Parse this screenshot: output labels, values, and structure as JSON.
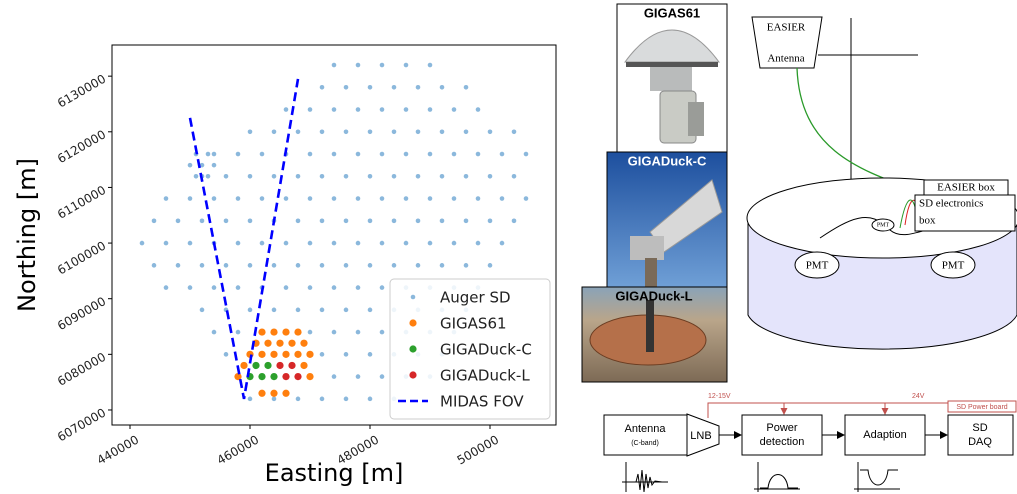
{
  "chart_data": {
    "type": "scatter",
    "x_label": "Easting [m]",
    "y_label": "Northing [m]",
    "xlim": [
      437000,
      511000
    ],
    "ylim": [
      6067300,
      6135600
    ],
    "xticks": [
      440000,
      460000,
      480000,
      500000
    ],
    "yticks": [
      6070000,
      6080000,
      6090000,
      6100000,
      6110000,
      6120000,
      6130000
    ],
    "legend": "lower right",
    "series": [
      {
        "name": "Auger SD",
        "color": "#8bb8dc",
        "x": [
          460000,
          464000,
          468000,
          472000,
          476000,
          480000,
          484000,
          458000,
          462000,
          466000,
          470000,
          474000,
          478000,
          482000,
          486000,
          490000,
          456000,
          460000,
          464000,
          468000,
          472000,
          476000,
          480000,
          484000,
          488000,
          492000,
          454000,
          458000,
          462000,
          466000,
          470000,
          474000,
          478000,
          482000,
          486000,
          490000,
          494000,
          452000,
          456000,
          460000,
          464000,
          468000,
          472000,
          476000,
          480000,
          484000,
          488000,
          492000,
          496000,
          446000,
          450000,
          454000,
          458000,
          462000,
          466000,
          470000,
          474000,
          478000,
          482000,
          486000,
          490000,
          494000,
          498000,
          444000,
          448000,
          452000,
          456000,
          460000,
          464000,
          468000,
          472000,
          476000,
          480000,
          484000,
          488000,
          492000,
          496000,
          500000,
          442000,
          446000,
          450000,
          454000,
          458000,
          462000,
          466000,
          470000,
          474000,
          478000,
          482000,
          486000,
          490000,
          494000,
          498000,
          502000,
          444000,
          448000,
          452000,
          456000,
          460000,
          464000,
          468000,
          472000,
          476000,
          480000,
          484000,
          488000,
          492000,
          496000,
          500000,
          504000,
          446000,
          450000,
          454000,
          458000,
          462000,
          466000,
          470000,
          474000,
          478000,
          482000,
          486000,
          490000,
          494000,
          498000,
          502000,
          506000,
          452000,
          456000,
          460000,
          464000,
          468000,
          472000,
          476000,
          480000,
          484000,
          488000,
          492000,
          496000,
          500000,
          504000,
          454000,
          458000,
          462000,
          466000,
          470000,
          474000,
          478000,
          482000,
          486000,
          490000,
          494000,
          498000,
          502000,
          506000,
          460000,
          464000,
          468000,
          472000,
          476000,
          480000,
          484000,
          488000,
          492000,
          496000,
          500000,
          504000,
          466000,
          470000,
          474000,
          478000,
          482000,
          486000,
          490000,
          494000,
          498000,
          472000,
          476000,
          480000,
          484000,
          488000,
          492000,
          496000,
          474000,
          478000,
          482000,
          486000,
          490000,
          450000,
          452000,
          454000,
          451000,
          453000,
          451000,
          453000
        ],
        "values": [
          6072000,
          6072000,
          6072000,
          6072000,
          6072000,
          6072000,
          6072000,
          6076000,
          6076000,
          6076000,
          6076000,
          6076000,
          6076000,
          6076000,
          6076000,
          6076000,
          6080000,
          6080000,
          6080000,
          6080000,
          6080000,
          6080000,
          6080000,
          6080000,
          6080000,
          6080000,
          6084000,
          6084000,
          6084000,
          6084000,
          6084000,
          6084000,
          6084000,
          6084000,
          6084000,
          6084000,
          6084000,
          6088000,
          6088000,
          6088000,
          6088000,
          6088000,
          6088000,
          6088000,
          6088000,
          6088000,
          6088000,
          6088000,
          6088000,
          6092000,
          6092000,
          6092000,
          6092000,
          6092000,
          6092000,
          6092000,
          6092000,
          6092000,
          6092000,
          6092000,
          6092000,
          6092000,
          6092000,
          6096000,
          6096000,
          6096000,
          6096000,
          6096000,
          6096000,
          6096000,
          6096000,
          6096000,
          6096000,
          6096000,
          6096000,
          6096000,
          6096000,
          6096000,
          6100000,
          6100000,
          6100000,
          6100000,
          6100000,
          6100000,
          6100000,
          6100000,
          6100000,
          6100000,
          6100000,
          6100000,
          6100000,
          6100000,
          6100000,
          6100000,
          6104000,
          6104000,
          6104000,
          6104000,
          6104000,
          6104000,
          6104000,
          6104000,
          6104000,
          6104000,
          6104000,
          6104000,
          6104000,
          6104000,
          6104000,
          6104000,
          6108000,
          6108000,
          6108000,
          6108000,
          6108000,
          6108000,
          6108000,
          6108000,
          6108000,
          6108000,
          6108000,
          6108000,
          6108000,
          6108000,
          6108000,
          6108000,
          6112000,
          6112000,
          6112000,
          6112000,
          6112000,
          6112000,
          6112000,
          6112000,
          6112000,
          6112000,
          6112000,
          6112000,
          6112000,
          6112000,
          6116000,
          6116000,
          6116000,
          6116000,
          6116000,
          6116000,
          6116000,
          6116000,
          6116000,
          6116000,
          6116000,
          6116000,
          6116000,
          6116000,
          6120000,
          6120000,
          6120000,
          6120000,
          6120000,
          6120000,
          6120000,
          6120000,
          6120000,
          6120000,
          6120000,
          6120000,
          6124000,
          6124000,
          6124000,
          6124000,
          6124000,
          6124000,
          6124000,
          6124000,
          6124000,
          6128000,
          6128000,
          6128000,
          6128000,
          6128000,
          6128000,
          6128000,
          6132000,
          6132000,
          6132000,
          6132000,
          6132000,
          6114000,
          6114000,
          6114000,
          6116000,
          6116000,
          6112000,
          6112000
        ]
      },
      {
        "name": "GIGAS61",
        "color": "#ff7f0e",
        "x": [
          462000,
          464000,
          466000,
          468000,
          461000,
          463000,
          465000,
          467000,
          469000,
          460000,
          462000,
          464000,
          466000,
          468000,
          470000,
          459000,
          469000,
          458000,
          470000,
          462000,
          464000,
          466000
        ],
        "values": [
          6084000,
          6084000,
          6084000,
          6084000,
          6082000,
          6082000,
          6082000,
          6082000,
          6082000,
          6080000,
          6080000,
          6080000,
          6080000,
          6080000,
          6080000,
          6078000,
          6078000,
          6076000,
          6076000,
          6073000,
          6073000,
          6073000
        ]
      },
      {
        "name": "GIGADuck-C",
        "color": "#2ca02c",
        "x": [
          461000,
          463000,
          460000,
          462000,
          464000
        ],
        "values": [
          6078000,
          6078000,
          6076000,
          6076000,
          6076000
        ]
      },
      {
        "name": "GIGADuck-L",
        "color": "#d62728",
        "x": [
          465000,
          467000,
          466000,
          468000
        ],
        "values": [
          6078000,
          6078000,
          6076000,
          6076000
        ]
      },
      {
        "name": "MIDAS FOV",
        "color": "#0000ff",
        "mode": "dashed-line",
        "x": [
          450000,
          459000,
          468000
        ],
        "values": [
          6122500,
          6072000,
          6129500
        ]
      }
    ]
  },
  "photos": [
    "GIGAS61",
    "GIGADuck-C",
    "GIGADuck-L"
  ],
  "tank_diagram": {
    "antenna": [
      "EASIER",
      "Antenna"
    ],
    "easier_box": "EASIER box",
    "sd_box": [
      "SD electronics",
      "box"
    ],
    "pmt_labels": [
      "PMT",
      "PMT",
      "PMT"
    ]
  },
  "block_diagram": {
    "antenna": "Antenna",
    "band": "(C-band)",
    "lnb": "LNB",
    "power_detection": [
      "Power",
      "detection"
    ],
    "adaption": "Adaption",
    "daq": [
      "SD",
      "DAQ"
    ],
    "voltage_1": "12-15V",
    "voltage_2": "24V",
    "power_board": "SD Power board"
  }
}
